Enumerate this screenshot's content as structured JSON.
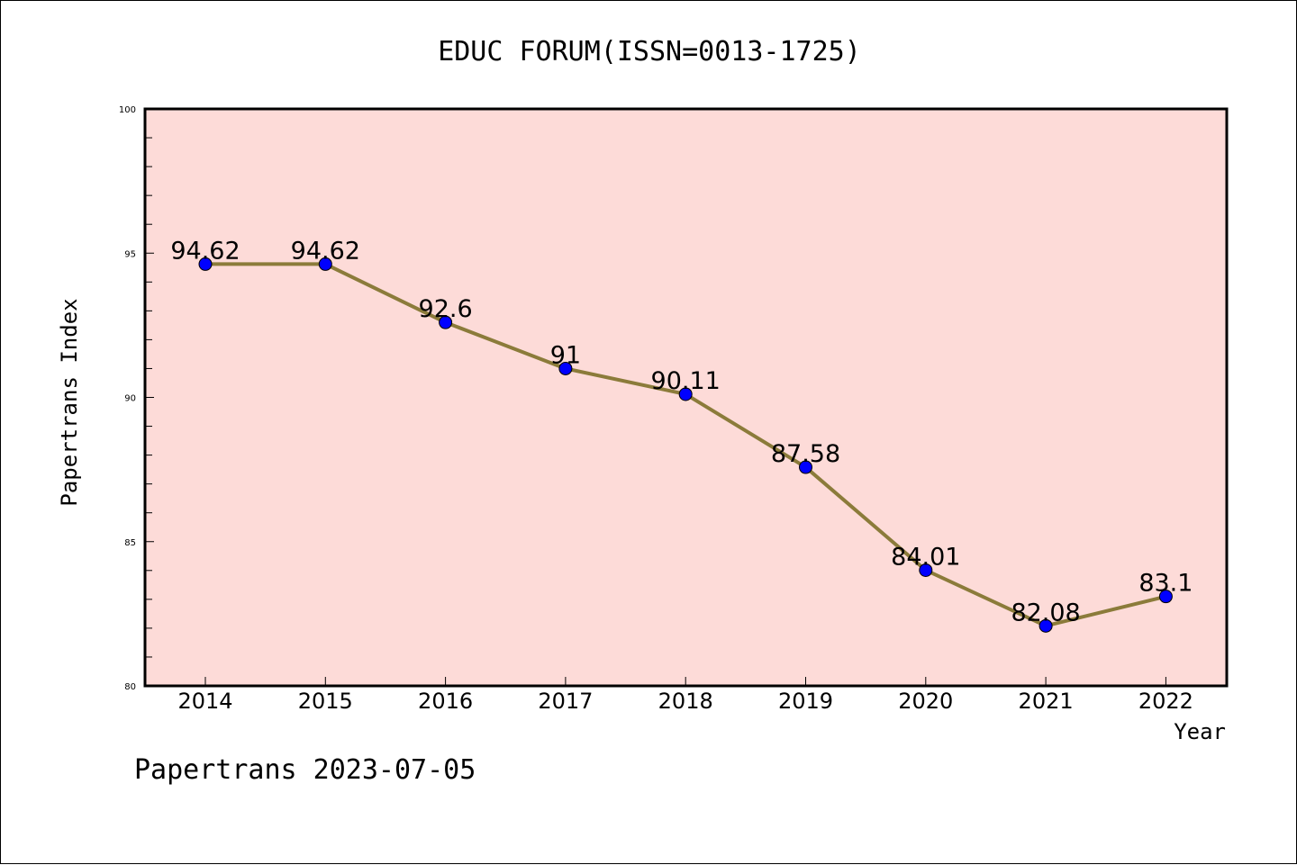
{
  "chart_data": {
    "type": "line",
    "title": "EDUC FORUM(ISSN=0013-1725)",
    "xlabel": "Year",
    "ylabel": "Papertrans Index",
    "categories": [
      "2014",
      "2015",
      "2016",
      "2017",
      "2018",
      "2019",
      "2020",
      "2021",
      "2022"
    ],
    "values": [
      94.62,
      94.62,
      92.6,
      91,
      90.11,
      87.58,
      84.01,
      82.08,
      83.1
    ],
    "data_labels": [
      "94.62",
      "94.62",
      "92.6",
      "91",
      "90.11",
      "87.58",
      "84.01",
      "82.08",
      "83.1"
    ],
    "ylim": [
      80,
      100
    ],
    "yticks": [
      "80",
      "85",
      "90",
      "95",
      "100"
    ],
    "grid": false,
    "legend": "none",
    "colors": {
      "plot_background": "#fddbd8",
      "line": "#8b7b3a",
      "marker": "#0000ff"
    }
  },
  "footer": "Papertrans 2023-07-05"
}
